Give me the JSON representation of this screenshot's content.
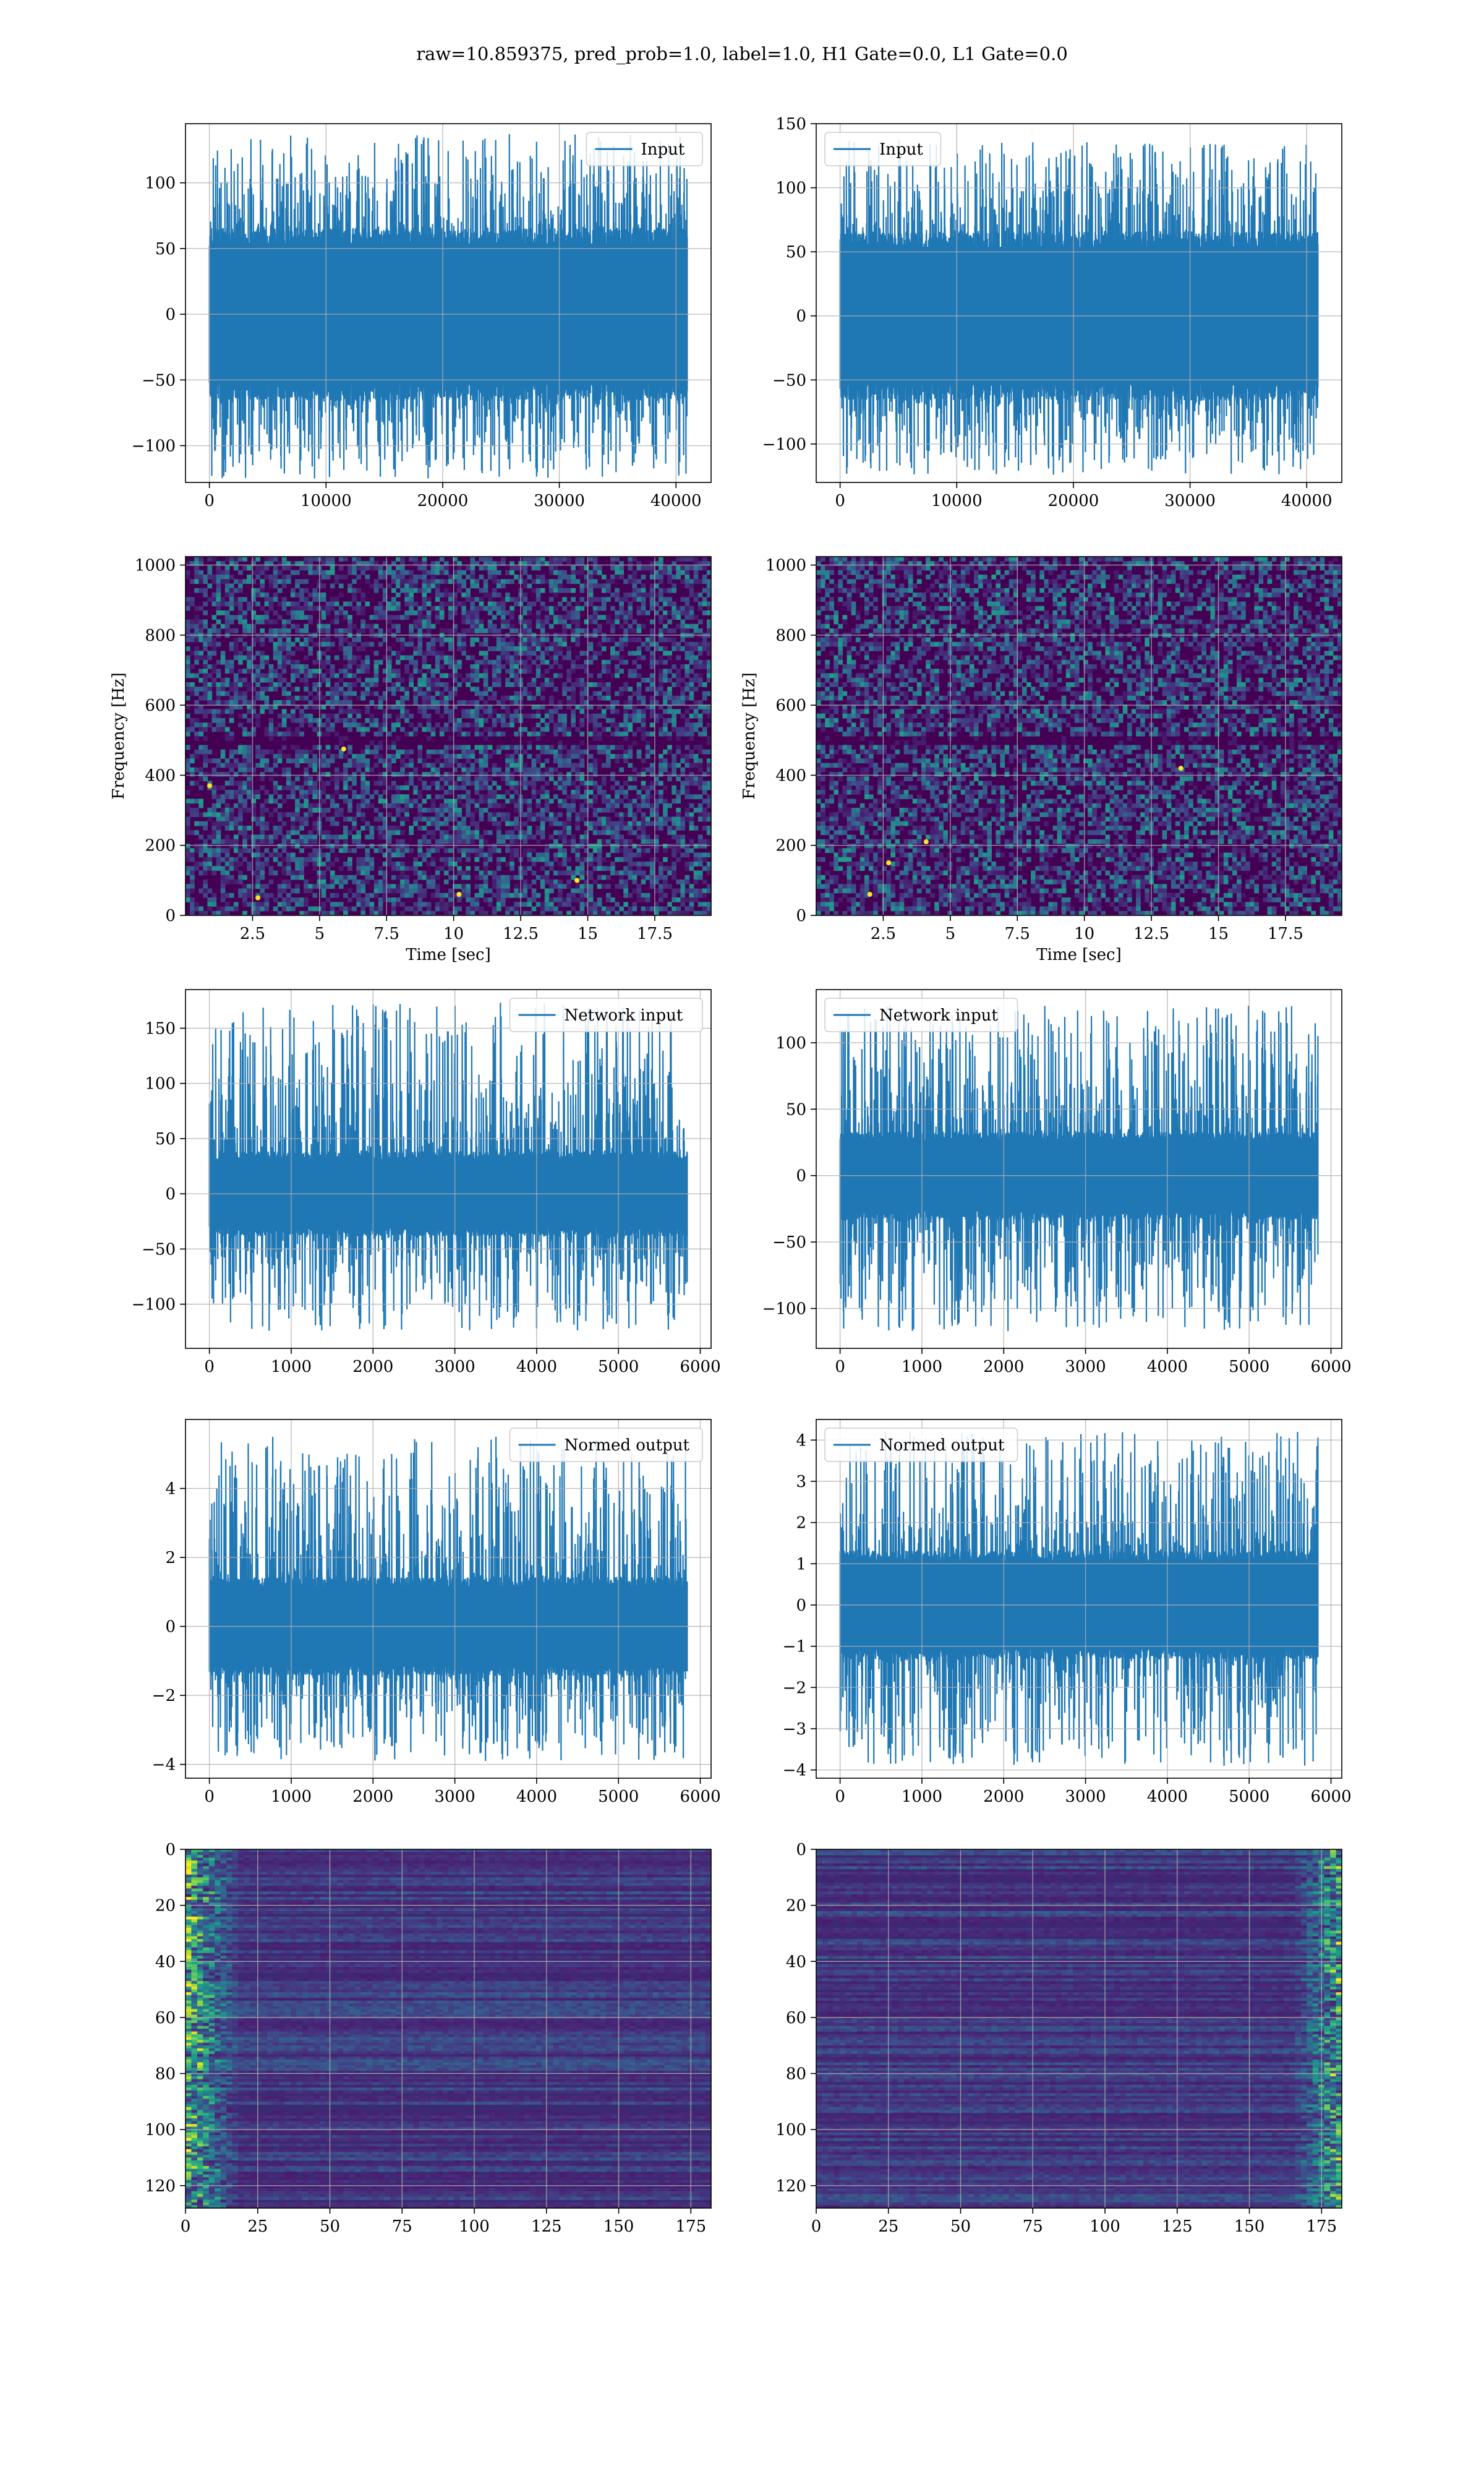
{
  "suptitle": "raw=10.859375, pred_prob=1.0, label=1.0, H1 Gate=0.0, L1 Gate=0.0",
  "colors": {
    "line": "#1f77b4",
    "grid": "#b0b0b0",
    "viridis": [
      "#440154",
      "#482878",
      "#3e4a89",
      "#31688e",
      "#26828e",
      "#1f9e89",
      "#35b779",
      "#6ece58",
      "#b5de2b",
      "#fde725"
    ]
  },
  "chart_data": [
    {
      "id": "h1-input",
      "type": "line",
      "legend": "Input",
      "legend_loc": "upper right",
      "xlim": [
        -2048,
        43008
      ],
      "ylim": [
        -128,
        145
      ],
      "xticks": [
        0,
        10000,
        20000,
        30000,
        40000
      ],
      "yticks": [
        -100,
        -50,
        0,
        50,
        100
      ],
      "signal": {
        "n": 40960,
        "core": 60,
        "low_extreme": -125,
        "high_extreme": 137
      },
      "grid": true
    },
    {
      "id": "l1-input",
      "type": "line",
      "legend": "Input",
      "legend_loc": "upper left",
      "xlim": [
        -2048,
        43008
      ],
      "ylim": [
        -130,
        150
      ],
      "xticks": [
        0,
        10000,
        20000,
        30000,
        40000
      ],
      "yticks": [
        -100,
        -50,
        0,
        50,
        100,
        150
      ],
      "signal": {
        "n": 40960,
        "core": 60,
        "low_extreme": -124,
        "high_extreme": 137
      },
      "grid": true
    },
    {
      "id": "h1-spectrogram",
      "type": "heatmap",
      "ylabel": "Frequency [Hz]",
      "xlabel": "Time [sec]",
      "xlim": [
        0,
        19.6
      ],
      "ylim": [
        0,
        1024
      ],
      "xticks": [
        2.5,
        5.0,
        7.5,
        10.0,
        12.5,
        15.0,
        17.5
      ],
      "yticks": [
        0,
        200,
        400,
        600,
        800,
        1000
      ],
      "bright_spots": [
        [
          0.9,
          370
        ],
        [
          2.7,
          50
        ],
        [
          5.9,
          475
        ],
        [
          10.2,
          60
        ],
        [
          14.6,
          100
        ]
      ],
      "dark_band_hz": 500,
      "grid": true
    },
    {
      "id": "l1-spectrogram",
      "type": "heatmap",
      "ylabel": "Frequency [Hz]",
      "xlabel": "Time [sec]",
      "xlim": [
        0,
        19.6
      ],
      "ylim": [
        0,
        1024
      ],
      "xticks": [
        2.5,
        5.0,
        7.5,
        10.0,
        12.5,
        15.0,
        17.5
      ],
      "yticks": [
        0,
        200,
        400,
        600,
        800,
        1000
      ],
      "bright_spots": [
        [
          2.0,
          60
        ],
        [
          2.7,
          150
        ],
        [
          4.1,
          210
        ],
        [
          13.6,
          420
        ]
      ],
      "dark_band_hz": 500,
      "grid": true
    },
    {
      "id": "h1-network-input",
      "type": "line",
      "legend": "Network input",
      "legend_loc": "upper right",
      "xlim": [
        -292,
        6132
      ],
      "ylim": [
        -140,
        185
      ],
      "xticks": [
        0,
        1000,
        2000,
        3000,
        4000,
        5000,
        6000
      ],
      "yticks": [
        -100,
        -50,
        0,
        50,
        100,
        150
      ],
      "signal": {
        "n": 5840,
        "core": 35,
        "low_extreme": -124,
        "high_extreme": 173
      },
      "grid": true
    },
    {
      "id": "l1-network-input",
      "type": "line",
      "legend": "Network input",
      "legend_loc": "upper left",
      "xlim": [
        -292,
        6132
      ],
      "ylim": [
        -130,
        140
      ],
      "xticks": [
        0,
        1000,
        2000,
        3000,
        4000,
        5000,
        6000
      ],
      "yticks": [
        -100,
        -50,
        0,
        50,
        100
      ],
      "signal": {
        "n": 5840,
        "core": 30,
        "low_extreme": -117,
        "high_extreme": 128
      },
      "grid": true
    },
    {
      "id": "h1-normed-output",
      "type": "line",
      "legend": "Normed output",
      "legend_loc": "upper right",
      "xlim": [
        -292,
        6132
      ],
      "ylim": [
        -4.4,
        6.0
      ],
      "xticks": [
        0,
        1000,
        2000,
        3000,
        4000,
        5000,
        6000
      ],
      "yticks": [
        -4,
        -2,
        0,
        2,
        4
      ],
      "signal": {
        "n": 5840,
        "core": 1.3,
        "low_extreme": -3.9,
        "high_extreme": 5.5
      },
      "grid": true
    },
    {
      "id": "l1-normed-output",
      "type": "line",
      "legend": "Normed output",
      "legend_loc": "upper left",
      "xlim": [
        -292,
        6132
      ],
      "ylim": [
        -4.2,
        4.5
      ],
      "xticks": [
        0,
        1000,
        2000,
        3000,
        4000,
        5000,
        6000
      ],
      "yticks": [
        -4,
        -3,
        -2,
        -1,
        0,
        1,
        2,
        3,
        4
      ],
      "signal": {
        "n": 5840,
        "core": 1.2,
        "low_extreme": -3.9,
        "high_extreme": 4.2
      },
      "grid": true
    },
    {
      "id": "h1-feature-map",
      "type": "heatmap",
      "xlim": [
        0,
        182
      ],
      "ylim": [
        128,
        0
      ],
      "xticks": [
        0,
        25,
        50,
        75,
        100,
        125,
        150,
        175
      ],
      "yticks": [
        0,
        20,
        40,
        60,
        80,
        100,
        120
      ],
      "bright_side": "left",
      "grid": true
    },
    {
      "id": "l1-feature-map",
      "type": "heatmap",
      "xlim": [
        0,
        182
      ],
      "ylim": [
        128,
        0
      ],
      "xticks": [
        0,
        25,
        50,
        75,
        100,
        125,
        150,
        175
      ],
      "yticks": [
        0,
        20,
        40,
        60,
        80,
        100,
        120
      ],
      "bright_side": "right",
      "grid": true
    }
  ]
}
